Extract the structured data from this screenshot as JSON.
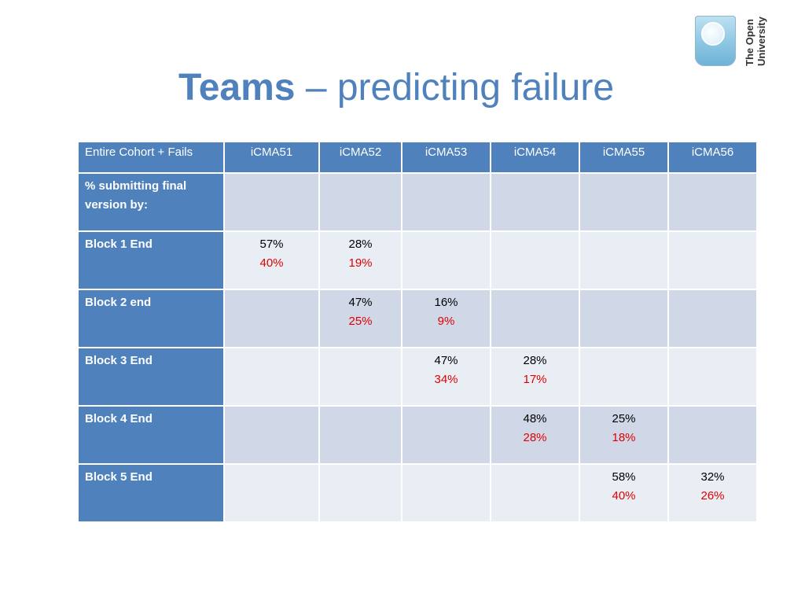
{
  "title": {
    "bold": "Teams",
    "rest": " – predicting failure"
  },
  "logo": {
    "line1": "The Open",
    "line2": "University"
  },
  "colors": {
    "header_blue": "#4f81bd",
    "band_dark": "#d0d8e8",
    "band_light": "#e9edf4",
    "fail_red": "#e00000"
  },
  "table": {
    "headers": [
      "Entire Cohort + Fails",
      "iCMA51",
      "iCMA52",
      "iCMA53",
      "iCMA54",
      "iCMA55",
      "iCMA56"
    ],
    "rows": [
      {
        "label": "% submitting final version by:",
        "cells": [
          {
            "all": "",
            "fail": ""
          },
          {
            "all": "",
            "fail": ""
          },
          {
            "all": "",
            "fail": ""
          },
          {
            "all": "",
            "fail": ""
          },
          {
            "all": "",
            "fail": ""
          },
          {
            "all": "",
            "fail": ""
          }
        ]
      },
      {
        "label": "Block 1 End",
        "cells": [
          {
            "all": "57%",
            "fail": "40%"
          },
          {
            "all": "28%",
            "fail": "19%"
          },
          {
            "all": "",
            "fail": ""
          },
          {
            "all": "",
            "fail": ""
          },
          {
            "all": "",
            "fail": ""
          },
          {
            "all": "",
            "fail": ""
          }
        ]
      },
      {
        "label": "Block 2 end",
        "cells": [
          {
            "all": "",
            "fail": ""
          },
          {
            "all": "47%",
            "fail": "25%"
          },
          {
            "all": "16%",
            "fail": "9%"
          },
          {
            "all": "",
            "fail": ""
          },
          {
            "all": "",
            "fail": ""
          },
          {
            "all": "",
            "fail": ""
          }
        ]
      },
      {
        "label": "Block 3 End",
        "cells": [
          {
            "all": "",
            "fail": ""
          },
          {
            "all": "",
            "fail": ""
          },
          {
            "all": "47%",
            "fail": "34%"
          },
          {
            "all": "28%",
            "fail": "17%"
          },
          {
            "all": "",
            "fail": ""
          },
          {
            "all": "",
            "fail": ""
          }
        ]
      },
      {
        "label": "Block 4 End",
        "cells": [
          {
            "all": "",
            "fail": ""
          },
          {
            "all": "",
            "fail": ""
          },
          {
            "all": "",
            "fail": ""
          },
          {
            "all": "48%",
            "fail": "28%"
          },
          {
            "all": "25%",
            "fail": "18%"
          },
          {
            "all": "",
            "fail": ""
          }
        ]
      },
      {
        "label": "Block 5 End",
        "cells": [
          {
            "all": "",
            "fail": ""
          },
          {
            "all": "",
            "fail": ""
          },
          {
            "all": "",
            "fail": ""
          },
          {
            "all": "",
            "fail": ""
          },
          {
            "all": "58%",
            "fail": "40%"
          },
          {
            "all": "32%",
            "fail": "26%"
          }
        ]
      }
    ]
  }
}
